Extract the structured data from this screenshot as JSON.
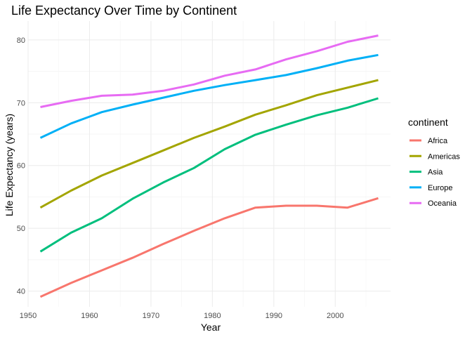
{
  "chart_data": {
    "type": "line",
    "title": "Life Expectancy Over Time by Continent",
    "xlabel": "Year",
    "ylabel": "Life Expectancy (years)",
    "x": [
      1952,
      1957,
      1962,
      1967,
      1972,
      1977,
      1982,
      1987,
      1992,
      1997,
      2002,
      2007
    ],
    "xlim": [
      1950,
      2009
    ],
    "ylim": [
      37.5,
      83
    ],
    "x_ticks": [
      1950,
      1960,
      1970,
      1980,
      1990,
      2000
    ],
    "y_ticks": [
      40,
      50,
      60,
      70,
      80
    ],
    "grid": true,
    "legend": {
      "title": "continent",
      "position": "right"
    },
    "series": [
      {
        "name": "Africa",
        "color": "#F8766D",
        "values": [
          39.1,
          41.3,
          43.3,
          45.3,
          47.5,
          49.6,
          51.6,
          53.3,
          53.6,
          53.6,
          53.3,
          54.8
        ]
      },
      {
        "name": "Americas",
        "color": "#A3A500",
        "values": [
          53.3,
          56.0,
          58.4,
          60.4,
          62.4,
          64.4,
          66.2,
          68.1,
          69.6,
          71.2,
          72.4,
          73.6
        ]
      },
      {
        "name": "Asia",
        "color": "#00BF7D",
        "values": [
          46.3,
          49.3,
          51.6,
          54.7,
          57.3,
          59.6,
          62.6,
          64.9,
          66.5,
          68.0,
          69.2,
          70.7
        ]
      },
      {
        "name": "Europe",
        "color": "#00B0F6",
        "values": [
          64.4,
          66.7,
          68.5,
          69.7,
          70.8,
          71.9,
          72.8,
          73.6,
          74.4,
          75.5,
          76.7,
          77.6
        ]
      },
      {
        "name": "Oceania",
        "color": "#E76BF3",
        "values": [
          69.3,
          70.3,
          71.1,
          71.3,
          71.9,
          72.9,
          74.3,
          75.3,
          76.9,
          78.2,
          79.7,
          80.7
        ]
      }
    ]
  }
}
